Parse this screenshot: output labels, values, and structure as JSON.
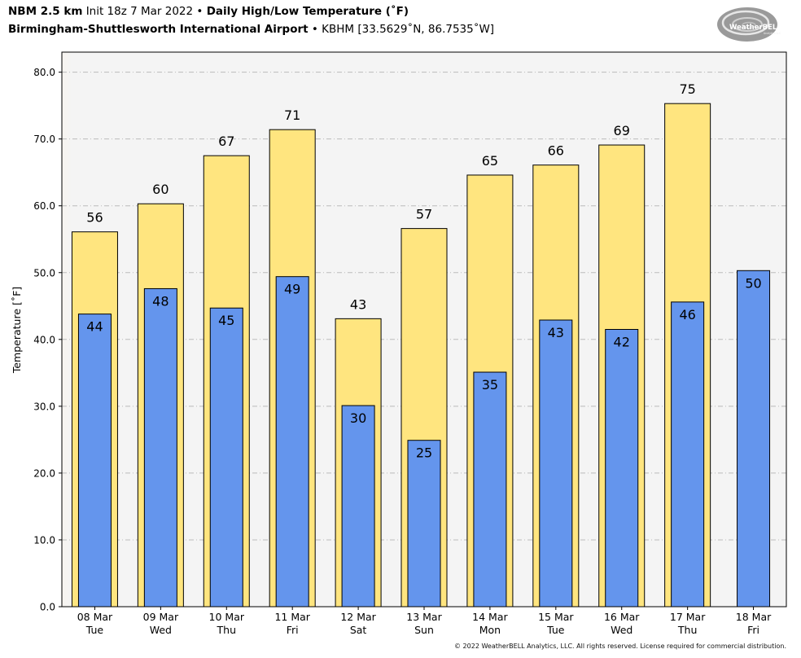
{
  "header": {
    "model": "NBM 2.5 km",
    "init": "Init 18z 7 Mar 2022",
    "bullet": "•",
    "product": "Daily High/Low Temperature (˚F)",
    "station": "Birmingham-Shuttlesworth International Airport",
    "station_info": "KBHM [33.5629˚N, 86.7535˚W]"
  },
  "logo": {
    "text": "WeatherBELL",
    "sub": "Analytics LLC"
  },
  "footer": {
    "copyright": "© 2022 WeatherBELL Analytics, LLC. All rights reserved. License required for commercial distribution."
  },
  "colors": {
    "high": "#FFE57F",
    "low": "#6495ED",
    "plot_bg": "#F4F4F4",
    "grid": "#BBBBBB"
  },
  "chart_data": {
    "type": "bar",
    "categories": [
      "08 Mar",
      "09 Mar",
      "10 Mar",
      "11 Mar",
      "12 Mar",
      "13 Mar",
      "14 Mar",
      "15 Mar",
      "16 Mar",
      "17 Mar",
      "18 Mar"
    ],
    "days": [
      "Tue",
      "Wed",
      "Thu",
      "Fri",
      "Sat",
      "Sun",
      "Mon",
      "Tue",
      "Wed",
      "Thu",
      "Fri"
    ],
    "series": [
      {
        "role": "high",
        "values": [
          56.1,
          60.3,
          67.5,
          71.4,
          43.1,
          56.6,
          64.6,
          66.1,
          69.1,
          75.3,
          null
        ],
        "labels": [
          "56",
          "60",
          "67",
          "71",
          "43",
          "57",
          "65",
          "66",
          "69",
          "75",
          ""
        ]
      },
      {
        "role": "low",
        "values": [
          43.8,
          47.6,
          44.7,
          49.4,
          30.1,
          24.9,
          35.1,
          42.9,
          41.5,
          45.6,
          50.3
        ],
        "labels": [
          "44",
          "48",
          "45",
          "49",
          "30",
          "25",
          "35",
          "43",
          "42",
          "46",
          "50"
        ]
      }
    ],
    "ylabel": "Temperature [˚F]",
    "ylim": [
      0,
      83
    ],
    "yticks": [
      0,
      10,
      20,
      30,
      40,
      50,
      60,
      70,
      80
    ],
    "ytick_labels": [
      "0.0",
      "10.0",
      "20.0",
      "30.0",
      "40.0",
      "50.0",
      "60.0",
      "70.0",
      "80.0"
    ],
    "grid": true
  }
}
